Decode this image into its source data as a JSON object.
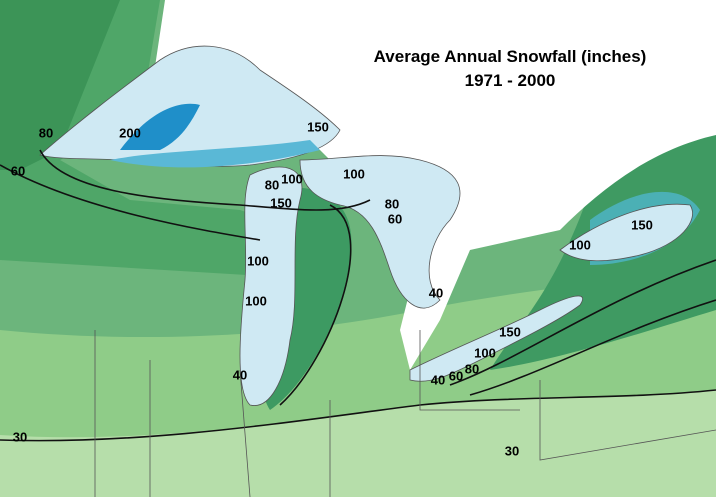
{
  "title": "Average Annual Snowfall (inches)",
  "subtitle": "1971 - 2000",
  "contour_labels": [
    80,
    60,
    200,
    150,
    100,
    80,
    100,
    150,
    100,
    100,
    40,
    80,
    60,
    40,
    100,
    150,
    150,
    100,
    80,
    60,
    40,
    30,
    30
  ]
}
